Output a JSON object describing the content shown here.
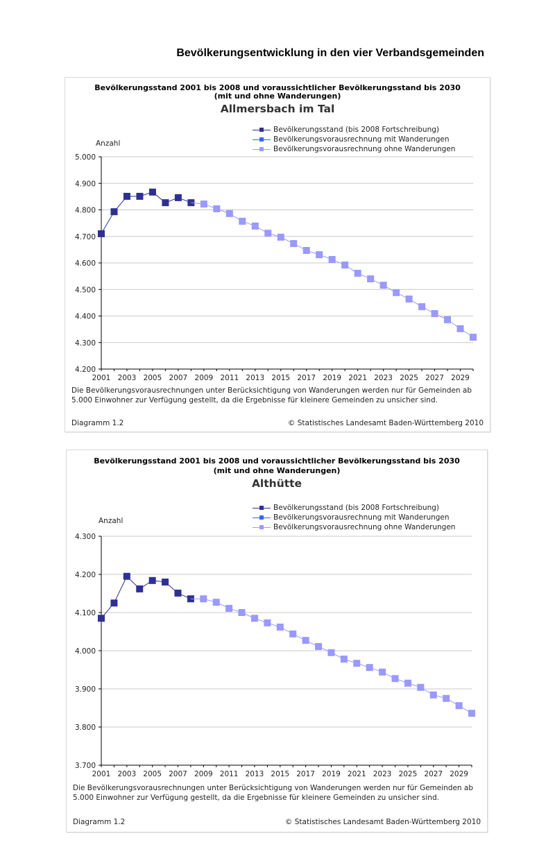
{
  "page_title": "Bevölkerungsentwicklung in den vier Verbandsgemeinden",
  "colors": {
    "historical": "#2e3192",
    "mit_wanderungen": "#3366ff",
    "ohne_wanderungen": "#9999ff",
    "grid": "#c8c8c8"
  },
  "chart_data": [
    {
      "type": "line",
      "title": "Bevölkerungsstand 2001 bis 2008 und voraussichtlicher Bevölkerungsstand bis 2030",
      "title_line2": "(mit und ohne Wanderungen)",
      "subtitle": "Allmersbach im Tal",
      "ylabel": "Anzahl",
      "ylim": [
        4200,
        5000
      ],
      "yticks": [
        "4.200",
        "4.300",
        "4.400",
        "4.500",
        "4.600",
        "4.700",
        "4.800",
        "4.900",
        "5.000"
      ],
      "xlim": [
        2001,
        2030
      ],
      "xticks": [
        "2001",
        "2003",
        "2005",
        "2007",
        "2009",
        "2011",
        "2013",
        "2015",
        "2017",
        "2019",
        "2021",
        "2023",
        "2025",
        "2027",
        "2029"
      ],
      "grid": true,
      "legend_placement": "top-right",
      "legend": [
        "Bevölkerungsstand (bis 2008 Fortschreibung)",
        "Bevölkerungsvorausrechnung mit Wanderungen",
        "Bevölkerungsvorausrechnung ohne Wanderungen"
      ],
      "series": [
        {
          "name": "Bevölkerungsstand (bis 2008 Fortschreibung)",
          "x": [
            2001,
            2002,
            2003,
            2004,
            2005,
            2006,
            2007,
            2008
          ],
          "values": [
            4710,
            4793,
            4851,
            4851,
            4867,
            4827,
            4846,
            4827
          ]
        },
        {
          "name": "Bevölkerungsvorausrechnung mit Wanderungen",
          "x": [],
          "values": []
        },
        {
          "name": "Bevölkerungsvorausrechnung ohne Wanderungen",
          "x": [
            2009,
            2010,
            2011,
            2012,
            2013,
            2014,
            2015,
            2016,
            2017,
            2018,
            2019,
            2020,
            2021,
            2022,
            2023,
            2024,
            2025,
            2026,
            2027,
            2028,
            2029,
            2030
          ],
          "values": [
            4822,
            4804,
            4786,
            4757,
            4739,
            4712,
            4697,
            4673,
            4647,
            4631,
            4613,
            4592,
            4561,
            4540,
            4516,
            4488,
            4464,
            4435,
            4409,
            4386,
            4352,
            4320
          ]
        }
      ],
      "footnote": "Die Bevölkerungsvorausrechnungen unter Berücksichtigung von Wanderungen werden nur für Gemeinden ab 5.000 Einwohner zur Verfügung gestellt, da die Ergebnisse für kleinere Gemeinden zu unsicher sind.",
      "diagram_label": "Diagramm 1.2",
      "source": "© Statistisches Landesamt Baden-Württemberg 2010"
    },
    {
      "type": "line",
      "title": "Bevölkerungsstand 2001 bis 2008 und voraussichtlicher Bevölkerungsstand bis 2030",
      "title_line2": "(mit und ohne Wanderungen)",
      "subtitle": "Althütte",
      "ylabel": "Anzahl",
      "ylim": [
        3700,
        4300
      ],
      "yticks": [
        "3.700",
        "3.800",
        "3.900",
        "4.000",
        "4.100",
        "4.200",
        "4.300"
      ],
      "xlim": [
        2001,
        2030
      ],
      "xticks": [
        "2001",
        "2003",
        "2005",
        "2007",
        "2009",
        "2011",
        "2013",
        "2015",
        "2017",
        "2019",
        "2021",
        "2023",
        "2025",
        "2027",
        "2029"
      ],
      "grid": true,
      "legend_placement": "top-right",
      "legend": [
        "Bevölkerungsstand (bis 2008 Fortschreibung)",
        "Bevölkerungsvorausrechnung mit Wanderungen",
        "Bevölkerungsvorausrechnung ohne Wanderungen"
      ],
      "series": [
        {
          "name": "Bevölkerungsstand (bis 2008 Fortschreibung)",
          "x": [
            2001,
            2002,
            2003,
            2004,
            2005,
            2006,
            2007,
            2008
          ],
          "values": [
            4085,
            4125,
            4195,
            4162,
            4184,
            4180,
            4151,
            4136
          ]
        },
        {
          "name": "Bevölkerungsvorausrechnung mit Wanderungen",
          "x": [],
          "values": []
        },
        {
          "name": "Bevölkerungsvorausrechnung ohne Wanderungen",
          "x": [
            2009,
            2010,
            2011,
            2012,
            2013,
            2014,
            2015,
            2016,
            2017,
            2018,
            2019,
            2020,
            2021,
            2022,
            2023,
            2024,
            2025,
            2026,
            2027,
            2028,
            2029,
            2030
          ],
          "values": [
            4136,
            4127,
            4111,
            4100,
            4085,
            4073,
            4062,
            4044,
            4027,
            4011,
            3995,
            3978,
            3967,
            3956,
            3944,
            3927,
            3915,
            3904,
            3884,
            3875,
            3856,
            3836
          ]
        }
      ],
      "footnote": "Die Bevölkerungsvorausrechnungen unter Berücksichtigung von Wanderungen werden nur für Gemeinden ab 5.000 Einwohner zur Verfügung gestellt, da die Ergebnisse für kleinere Gemeinden zu unsicher sind.",
      "diagram_label": "Diagramm 1.2",
      "source": "© Statistisches Landesamt Baden-Württemberg 2010"
    }
  ]
}
